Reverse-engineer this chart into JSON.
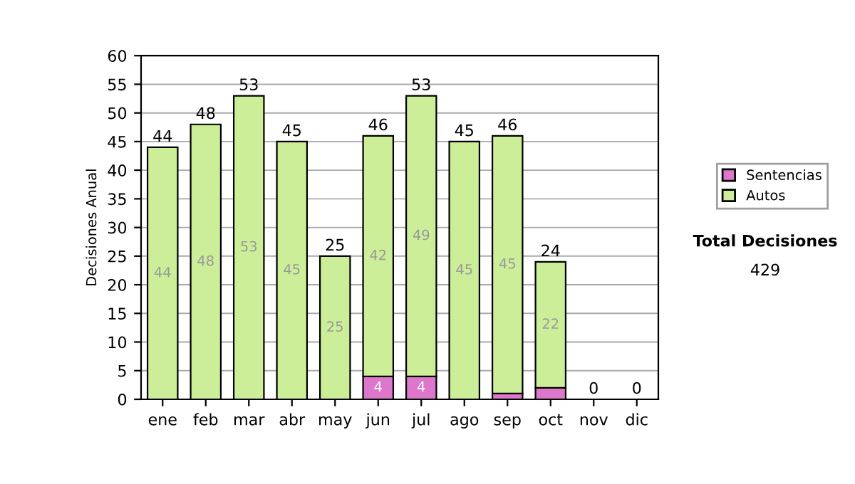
{
  "chart_data": {
    "type": "bar",
    "stacked": true,
    "ylabel": "Decisiones Anual",
    "categories": [
      "ene",
      "feb",
      "mar",
      "abr",
      "may",
      "jun",
      "jul",
      "ago",
      "sep",
      "oct",
      "nov",
      "dic"
    ],
    "series": [
      {
        "name": "Sentencias",
        "color": "#dd77cc",
        "values": [
          0,
          0,
          0,
          0,
          0,
          4,
          4,
          0,
          1,
          2,
          0,
          0
        ],
        "value_labels": [
          null,
          null,
          null,
          null,
          null,
          "4",
          "4",
          null,
          null,
          null,
          null,
          null
        ]
      },
      {
        "name": "Autos",
        "color": "#ccee99",
        "values": [
          44,
          48,
          53,
          45,
          25,
          42,
          49,
          45,
          45,
          22,
          0,
          0
        ],
        "value_labels": [
          "44",
          "48",
          "53",
          "45",
          "25",
          "42",
          "49",
          "45",
          "45",
          "22",
          null,
          null
        ]
      }
    ],
    "totals": [
      "44",
      "48",
      "53",
      "45",
      "25",
      "46",
      "53",
      "45",
      "46",
      "24",
      "0",
      "0"
    ],
    "ylim": [
      0,
      60
    ],
    "yticks": [
      0,
      5,
      10,
      15,
      20,
      25,
      30,
      35,
      40,
      45,
      50,
      55,
      60
    ],
    "grid": "y",
    "legend": "right",
    "annotations": [
      "Total Decisiones",
      "429"
    ]
  }
}
